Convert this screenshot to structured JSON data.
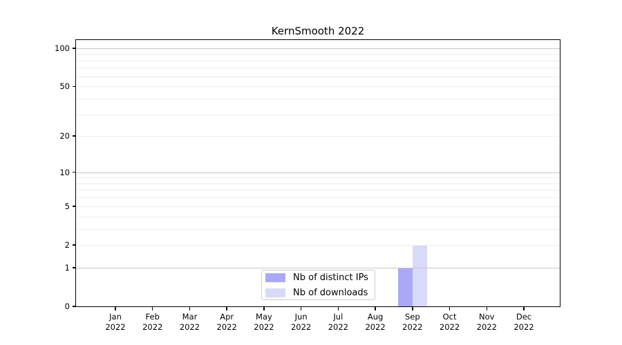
{
  "chart_data": {
    "type": "bar",
    "title": "KernSmooth 2022",
    "categories": [
      "Jan",
      "Feb",
      "Mar",
      "Apr",
      "May",
      "Jun",
      "Jul",
      "Aug",
      "Sep",
      "Oct",
      "Nov",
      "Dec"
    ],
    "year_label": "2022",
    "series": [
      {
        "name": "Nb of distinct IPs",
        "color": "#a9a9f5",
        "values": [
          0,
          0,
          0,
          0,
          0,
          0,
          0,
          0,
          1,
          0,
          0,
          0
        ]
      },
      {
        "name": "Nb of downloads",
        "color": "#d9d9f8",
        "values": [
          0,
          0,
          0,
          0,
          0,
          0,
          0,
          0,
          2,
          0,
          0,
          0
        ]
      }
    ],
    "y_axis": {
      "scale": "log1p",
      "ticks": [
        0,
        1,
        2,
        5,
        10,
        20,
        50,
        100
      ],
      "max": 116,
      "major_grid_values": [
        1,
        10,
        100
      ],
      "minor_grid_values": [
        2,
        3,
        4,
        5,
        6,
        7,
        8,
        9,
        20,
        30,
        40,
        50,
        60,
        70,
        80,
        90
      ]
    },
    "x_axis": {
      "label_lines": 2
    },
    "grid": true,
    "legend_position": "lower-center",
    "legend_entries": [
      "Nb of distinct IPs",
      "Nb of downloads"
    ]
  },
  "colors": {
    "background": "#ffffff",
    "axis": "#000000",
    "major_grid": "#c8c8c8",
    "minor_grid": "#ededed",
    "legend_border": "#cccccc",
    "text": "#000000"
  }
}
